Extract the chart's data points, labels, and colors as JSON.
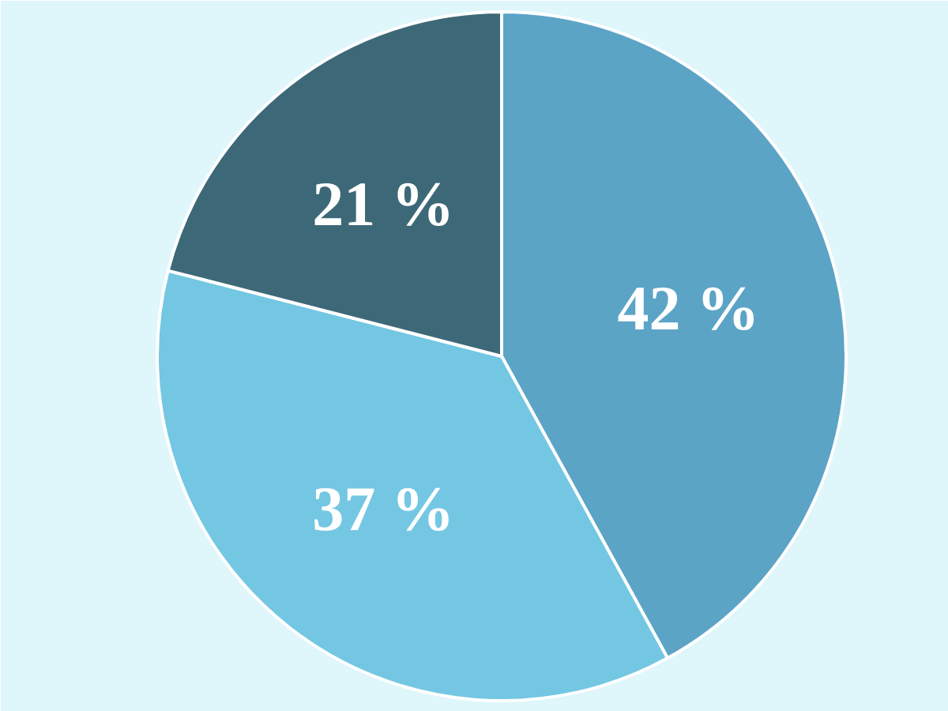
{
  "chart_data": {
    "type": "pie",
    "categories": [
      null,
      null,
      null
    ],
    "values": [
      42,
      37,
      21
    ],
    "colors": [
      "#5ca4c6",
      "#73c7e3",
      "#3d6878"
    ],
    "value_labels": [
      "42 %",
      "37 %",
      "21 %"
    ]
  }
}
